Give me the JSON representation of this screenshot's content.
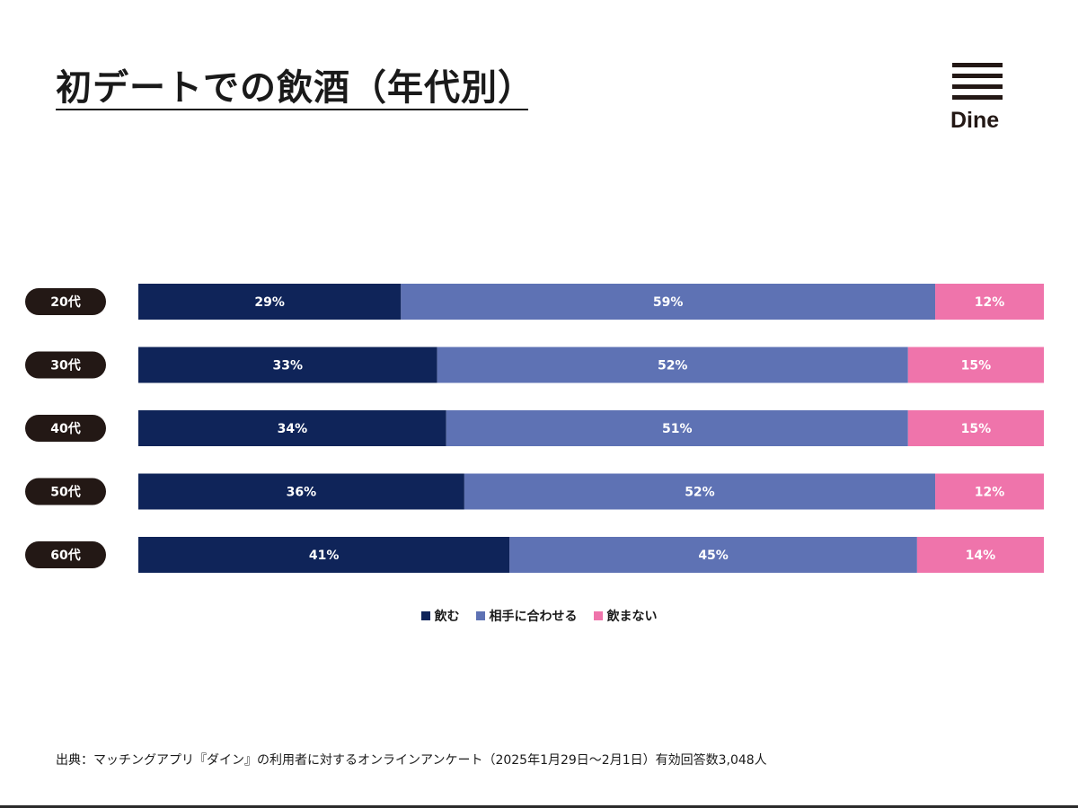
{
  "title": "初デートでの飲酒（年代別）",
  "logo": {
    "text": "Dine"
  },
  "colors": {
    "drink": "#0f2459",
    "match": "#5e72b4",
    "nodrink": "#ef74ab",
    "pill": "#231815"
  },
  "legend": [
    {
      "label": "飲む",
      "color": "#0f2459"
    },
    {
      "label": "相手に合わせる",
      "color": "#5e72b4"
    },
    {
      "label": "飲まない",
      "color": "#ef74ab"
    }
  ],
  "chart_data": {
    "type": "bar",
    "orientation": "horizontal",
    "stacked": true,
    "categories": [
      "20代",
      "30代",
      "40代",
      "50代",
      "60代"
    ],
    "series": [
      {
        "name": "飲む",
        "values": [
          29,
          33,
          34,
          36,
          41
        ]
      },
      {
        "name": "相手に合わせる",
        "values": [
          59,
          52,
          51,
          52,
          45
        ]
      },
      {
        "name": "飲まない",
        "values": [
          12,
          15,
          15,
          12,
          14
        ]
      }
    ],
    "value_suffix": "%",
    "xlim": [
      0,
      100
    ],
    "legend_position": "bottom"
  },
  "source": "出典：マッチングアプリ『ダイン』の利用者に対するオンラインアンケート（2025年1月29日〜2月1日）有効回答数3,048人"
}
